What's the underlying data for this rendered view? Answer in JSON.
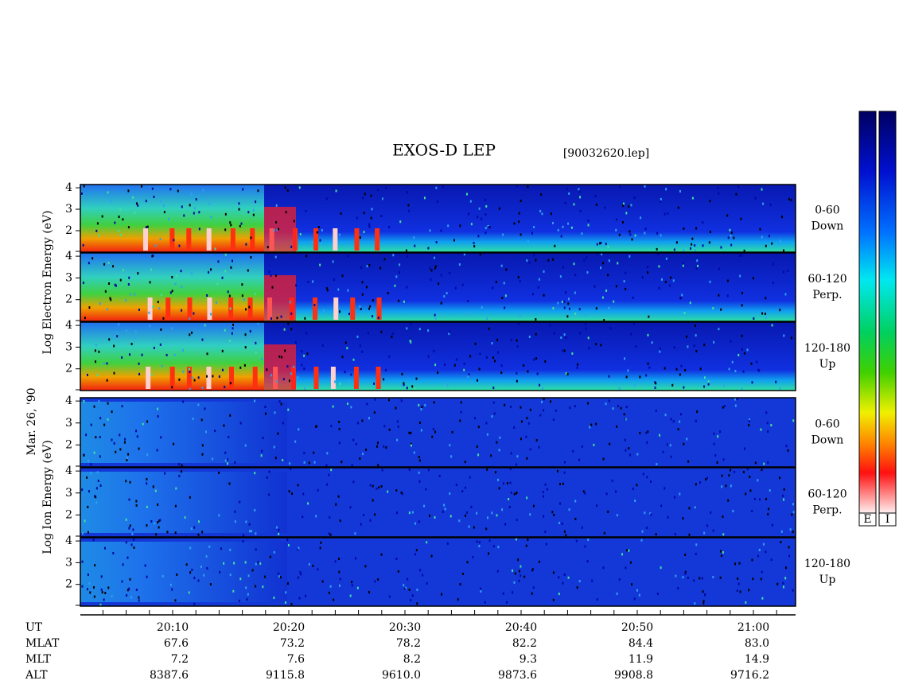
{
  "title": "EXOS-D LEP",
  "file": "[90032620.lep]",
  "date": "Mar. 26, '90",
  "electron": {
    "axis_label": "Log  Electron  Energy (eV)",
    "panels": [
      {
        "side": [
          "0-60",
          "Down"
        ]
      },
      {
        "side": [
          "60-120",
          "Perp."
        ]
      },
      {
        "side": [
          "120-180",
          "Up"
        ]
      }
    ]
  },
  "ion": {
    "axis_label": "Log  Ion  Energy (eV)",
    "panels": [
      {
        "side": [
          "0-60",
          "Down"
        ]
      },
      {
        "side": [
          "60-120",
          "Perp."
        ]
      },
      {
        "side": [
          "120-180",
          "Up"
        ]
      }
    ]
  },
  "ylim": [
    1,
    4.15
  ],
  "yticks": [
    2,
    3,
    4
  ],
  "ephemeris": {
    "labels": [
      "UT",
      "MLAT",
      "MLT",
      "ALT"
    ],
    "columns": [
      [
        "20:10",
        "67.6",
        "7.2",
        "8387.6"
      ],
      [
        "20:20",
        "73.2",
        "7.6",
        "9115.8"
      ],
      [
        "20:30",
        "78.2",
        "8.2",
        "9610.0"
      ],
      [
        "20:40",
        "82.2",
        "9.3",
        "9873.6"
      ],
      [
        "20:50",
        "84.4",
        "11.9",
        "9908.8"
      ],
      [
        "21:00",
        "83.0",
        "14.9",
        "9716.2"
      ]
    ]
  },
  "colorbars": [
    "E",
    "I"
  ]
}
